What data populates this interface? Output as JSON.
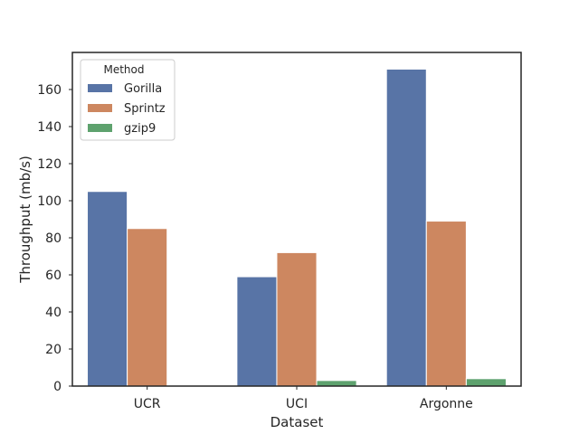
{
  "chart_data": {
    "type": "bar",
    "title": "",
    "xlabel": "Dataset",
    "ylabel": "Throughput (mb/s)",
    "categories": [
      "UCR",
      "UCI",
      "Argonne"
    ],
    "ylim": [
      0,
      180
    ],
    "yticks": [
      0,
      20,
      40,
      60,
      80,
      100,
      120,
      140,
      160
    ],
    "grid": false,
    "legend": {
      "title": "Method",
      "placement": "top-left"
    },
    "series": [
      {
        "name": "Gorilla",
        "color": "#5874a6",
        "values": [
          105,
          59,
          171
        ]
      },
      {
        "name": "Sprintz",
        "color": "#cd8760",
        "values": [
          85,
          72,
          89
        ]
      },
      {
        "name": "gzip9",
        "color": "#5ea26e",
        "values": [
          0,
          3,
          4
        ]
      }
    ]
  }
}
